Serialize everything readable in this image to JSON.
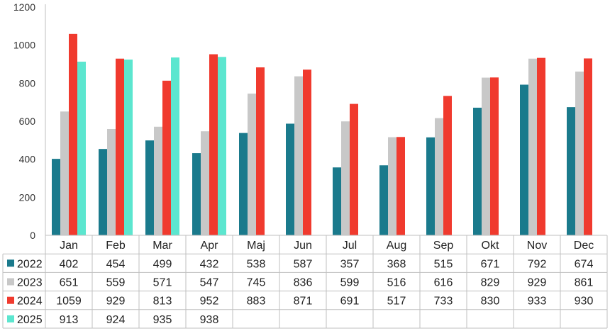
{
  "chart_data": {
    "type": "bar",
    "categories": [
      "Jan",
      "Feb",
      "Mar",
      "Apr",
      "Maj",
      "Jun",
      "Jul",
      "Aug",
      "Sep",
      "Okt",
      "Nov",
      "Dec"
    ],
    "series": [
      {
        "name": "2022",
        "color": "#1a7a8c",
        "values": [
          402,
          454,
          499,
          432,
          538,
          587,
          357,
          368,
          515,
          671,
          792,
          674
        ]
      },
      {
        "name": "2023",
        "color": "#c8c8c8",
        "values": [
          651,
          559,
          571,
          547,
          745,
          836,
          599,
          516,
          616,
          829,
          929,
          861
        ]
      },
      {
        "name": "2024",
        "color": "#f03a2e",
        "values": [
          1059,
          929,
          813,
          952,
          883,
          871,
          691,
          517,
          733,
          830,
          933,
          930
        ]
      },
      {
        "name": "2025",
        "color": "#5ce6cf",
        "values": [
          913,
          924,
          935,
          938,
          null,
          null,
          null,
          null,
          null,
          null,
          null,
          null
        ]
      }
    ],
    "ylim": [
      0,
      1200
    ],
    "yticks": [
      0,
      200,
      400,
      600,
      800,
      1000,
      1200
    ],
    "grid": false,
    "legend": "data-table"
  }
}
